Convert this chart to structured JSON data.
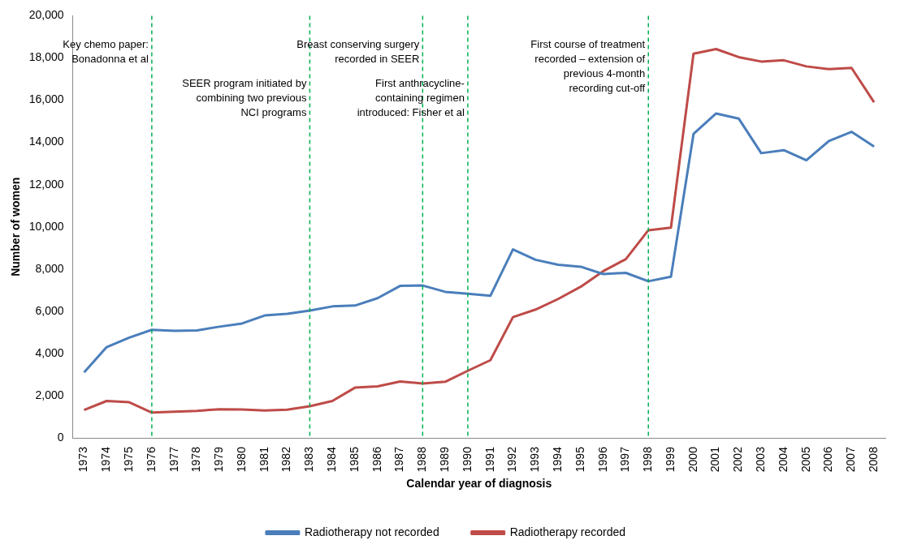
{
  "chart_data": {
    "type": "line",
    "xlabel": "Calendar year of diagnosis",
    "ylabel": "Number of women",
    "categories": [
      "1973",
      "1974",
      "1975",
      "1976",
      "1977",
      "1978",
      "1979",
      "1980",
      "1981",
      "1982",
      "1983",
      "1984",
      "1985",
      "1986",
      "1987",
      "1988",
      "1989",
      "1990",
      "1991",
      "1992",
      "1993",
      "1994",
      "1995",
      "1996",
      "1997",
      "1998",
      "1999",
      "2000",
      "2001",
      "2002",
      "2003",
      "2004",
      "2005",
      "2006",
      "2007",
      "2008"
    ],
    "series": [
      {
        "name": "Radiotherapy not recorded",
        "color": "#4a7ebb",
        "values": [
          3100,
          4300,
          4750,
          5120,
          5070,
          5090,
          5270,
          5420,
          5800,
          5880,
          6030,
          6230,
          6270,
          6620,
          7200,
          7220,
          6920,
          6830,
          6730,
          8930,
          8440,
          8200,
          8110,
          7760,
          7820,
          7420,
          7640,
          14400,
          15370,
          15130,
          13490,
          13630,
          13150,
          14070,
          14500,
          13800
        ]
      },
      {
        "name": "Radiotherapy recorded",
        "color": "#be4b48",
        "values": [
          1320,
          1750,
          1690,
          1200,
          1240,
          1280,
          1360,
          1350,
          1300,
          1340,
          1500,
          1750,
          2380,
          2440,
          2670,
          2580,
          2660,
          3180,
          3680,
          5720,
          6080,
          6580,
          7160,
          7900,
          8470,
          9840,
          9960,
          18200,
          18420,
          18040,
          17830,
          17890,
          17600,
          17470,
          17530,
          15900
        ]
      }
    ],
    "ylim": [
      0,
      20000
    ],
    "yticks": [
      {
        "value": 0,
        "label": "0"
      },
      {
        "value": 2000,
        "label": "2,000"
      },
      {
        "value": 4000,
        "label": "4,000"
      },
      {
        "value": 6000,
        "label": "6,000"
      },
      {
        "value": 8000,
        "label": "8,000"
      },
      {
        "value": 10000,
        "label": "10,000"
      },
      {
        "value": 12000,
        "label": "12,000"
      },
      {
        "value": 14000,
        "label": "14,000"
      },
      {
        "value": 16000,
        "label": "16,000"
      },
      {
        "value": 18000,
        "label": "18,000"
      },
      {
        "value": 20000,
        "label": "20,000"
      }
    ],
    "grid": false,
    "legend": "bottom",
    "marker": "none",
    "line_style": "solid",
    "ref_lines": [
      {
        "axis": "x",
        "value": "1976",
        "color": "#00b050",
        "line_style": "dashed",
        "label": "Key chemo paper:\nBonadonna et al"
      },
      {
        "axis": "x",
        "value": "1983",
        "color": "#00b050",
        "line_style": "dashed",
        "label": "SEER program initiated by\ncombining two previous\nNCI programs"
      },
      {
        "axis": "x",
        "value": "1988",
        "color": "#00b050",
        "line_style": "dashed",
        "label": "Breast conserving surgery\nrecorded in SEER"
      },
      {
        "axis": "x",
        "value": "1990",
        "color": "#00b050",
        "line_style": "dashed",
        "label": "First anthracycline-\ncontaining regimen\nintroduced: Fisher et al"
      },
      {
        "axis": "x",
        "value": "1998",
        "color": "#00b050",
        "line_style": "dashed",
        "label": "First course of treatment\nrecorded – extension of\nprevious 4-month\nrecording cut-off"
      }
    ]
  }
}
